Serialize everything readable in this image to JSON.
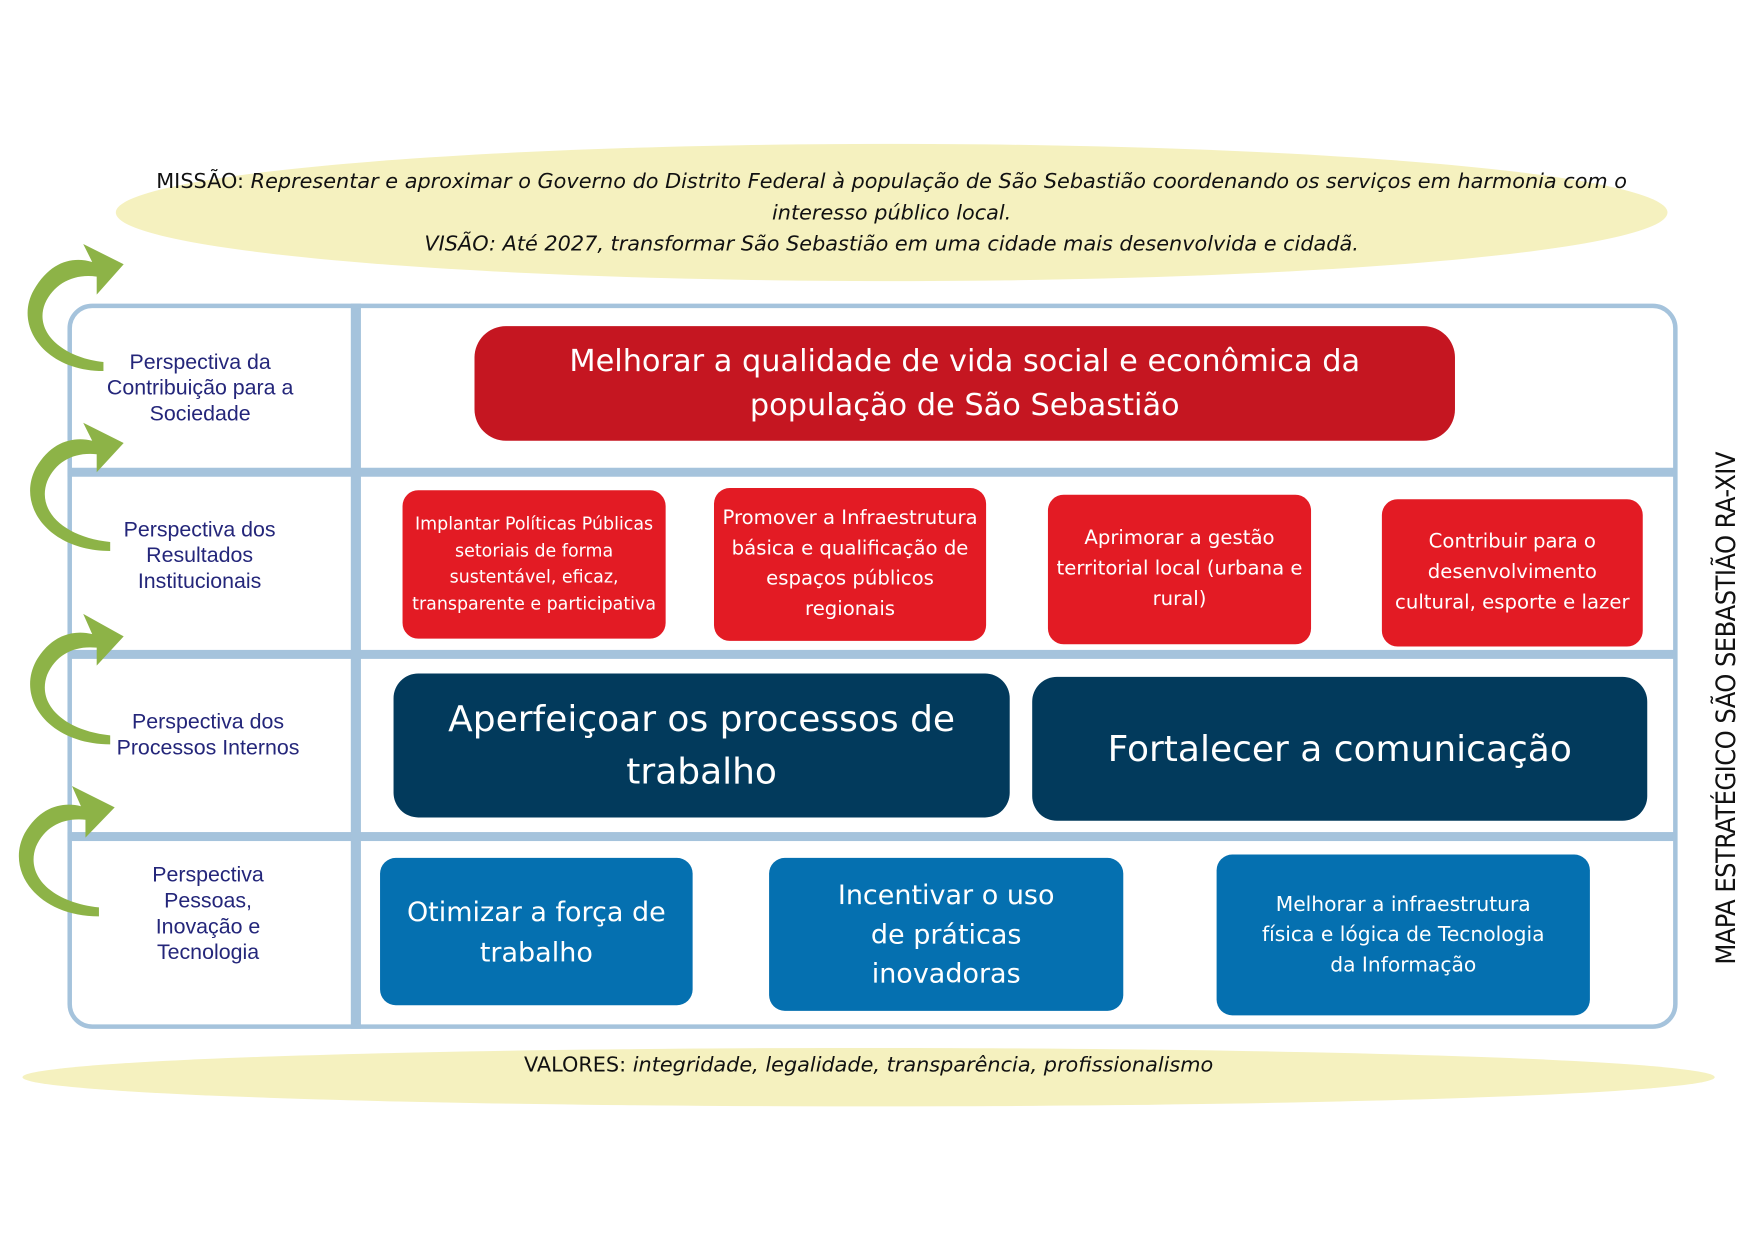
{
  "mission": {
    "label": "MISSÃO:",
    "text": "Representar e aproximar o Governo do Distrito Federal à população de São Sebastião coordenando os serviços em harmonia com o interesso público local.",
    "vision": "VISÃO: Até 2027, transformar São Sebastião em uma cidade mais desenvolvida e cidadã."
  },
  "values": {
    "label": "VALORES:",
    "text": "integridade, legalidade, transparência, profissionalismo"
  },
  "side_title": "MAPA ESTRATÉGICO SÃO SEBASTIÃO RA-XIV",
  "perspectives": [
    {
      "label": "Perspectiva da Contribuição para a Sociedade",
      "objectives": [
        "Melhorar a qualidade de vida social e econômica da população de São Sebastião"
      ]
    },
    {
      "label": "Perspectiva dos Resultados Institucionais",
      "objectives": [
        "Implantar Políticas Públicas setoriais de forma sustentável, eficaz, transparente e participativa",
        "Promover a Infraestrutura básica e qualificação de espaços públicos regionais",
        "Aprimorar a gestão territorial local (urbana e rural)",
        "Contribuir para o desenvolvimento cultural, esporte e lazer"
      ]
    },
    {
      "label": "Perspectiva dos Processos Internos",
      "objectives": [
        "Aperfeiçoar os processos de trabalho",
        "Fortalecer a comunicação"
      ]
    },
    {
      "label": "Perspectiva Pessoas, Inovação e Tecnologia",
      "objectives": [
        "Otimizar a força de trabalho",
        "Incentivar o uso de práticas inovadoras",
        "Melhorar a infraestrutura física e lógica de Tecnologia da Informação"
      ]
    }
  ],
  "colors": {
    "oval": "#f5f1bf",
    "grid": "#a5c3dc",
    "society": "#c51621",
    "results": "#e31b24",
    "processes": "#023a5c",
    "people": "#0570b0",
    "arrows": "#8db347",
    "perspective_text": "#24267a"
  }
}
